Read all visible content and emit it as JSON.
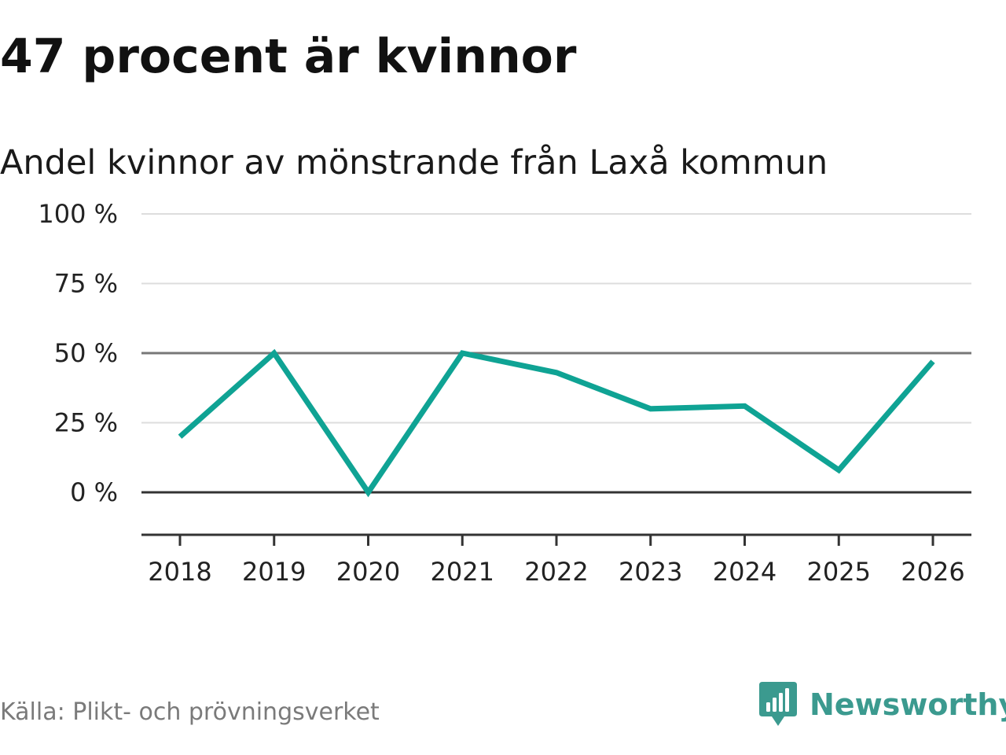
{
  "title": "47 procent är kvinnor",
  "subtitle": "Andel kvinnor av mönstrande från Laxå kommun",
  "source": "Källa: Plikt- och prövningsverket",
  "brand": "Newsworthy",
  "colors": {
    "line": "#0fa394",
    "brand": "#3b9a8f",
    "grid": "#dddddd",
    "axis": "#333333",
    "source_text": "#7a7a7a"
  },
  "icons": [
    "newsworthy-logo-icon"
  ],
  "chart_data": {
    "type": "line",
    "x": [
      "2018",
      "2019",
      "2020",
      "2021",
      "2022",
      "2023",
      "2024",
      "2025",
      "2026"
    ],
    "series": [
      {
        "values": [
          20,
          50,
          0,
          50,
          43,
          30,
          31,
          8,
          47
        ]
      }
    ],
    "yticks": [
      0,
      25,
      50,
      75,
      100
    ],
    "ytick_labels": [
      "0 %",
      "25 %",
      "50 %",
      "75 %",
      "100 %"
    ],
    "ylim": [
      -15,
      100
    ],
    "reference_line": 50,
    "grid": true,
    "legend": "none",
    "xlabel": "",
    "ylabel": ""
  }
}
